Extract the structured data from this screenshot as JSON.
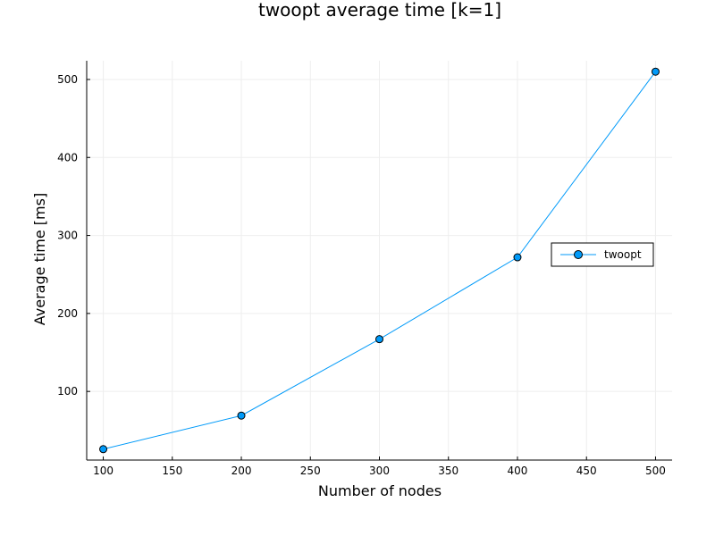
{
  "chart_data": {
    "type": "line",
    "title": "twoopt average time [k=1]",
    "xlabel": "Number of nodes",
    "ylabel": "Average time [ms]",
    "x": [
      100,
      200,
      300,
      400,
      500
    ],
    "series": [
      {
        "name": "twoopt",
        "values": [
          26,
          69,
          167,
          272,
          510
        ]
      }
    ],
    "xlim": [
      88,
      512
    ],
    "ylim": [
      12,
      524
    ],
    "xticks": [
      100,
      150,
      200,
      250,
      300,
      350,
      400,
      450,
      500
    ],
    "yticks": [
      100,
      200,
      300,
      400,
      500
    ],
    "xtick_labels": [
      "100",
      "150",
      "200",
      "250",
      "300",
      "350",
      "400",
      "450",
      "500"
    ],
    "ytick_labels": [
      "100",
      "200",
      "300",
      "400",
      "500"
    ],
    "grid": true,
    "legend_position": "right",
    "colors": {
      "series": "#009af9",
      "marker_fill": "#009af9",
      "marker_stroke": "#000000",
      "grid": "#eeeeee",
      "axis": "#000000"
    }
  }
}
